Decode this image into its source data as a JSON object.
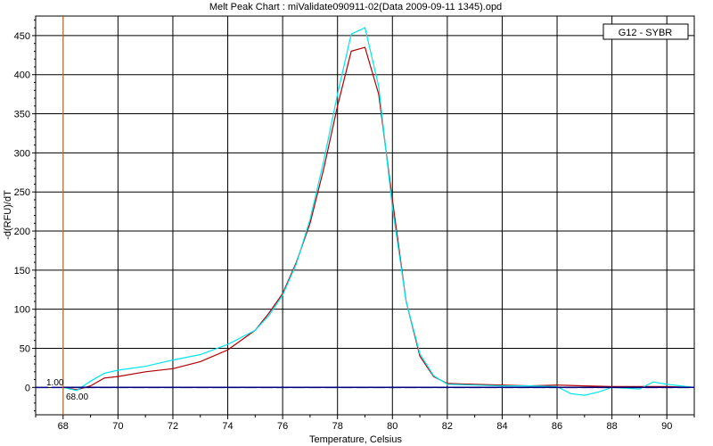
{
  "chart_data": {
    "type": "line",
    "title": "Melt Peak Chart : miValidate090911-02(Data 2009-09-11 1345).opd",
    "xlabel": "Temperature, Celsius",
    "ylabel": "-d(RFU)/dT",
    "xlim": [
      67,
      91
    ],
    "ylim": [
      -35,
      475
    ],
    "x_ticks": [
      68,
      70,
      72,
      74,
      76,
      78,
      80,
      82,
      84,
      86,
      88,
      90
    ],
    "y_ticks": [
      0,
      50,
      100,
      150,
      200,
      250,
      300,
      350,
      400,
      450
    ],
    "grid": true,
    "legend": {
      "position": "top-right",
      "entries": [
        "G12 - SYBR"
      ]
    },
    "marker": {
      "x": 68.0,
      "x_label": "68.00",
      "y_label": "1.00"
    },
    "series": [
      {
        "color": "#b00000",
        "x": [
          68.0,
          68.5,
          69.0,
          69.5,
          70.0,
          71.0,
          72.0,
          73.0,
          74.0,
          75.0,
          75.5,
          76.0,
          76.5,
          77.0,
          77.5,
          78.0,
          78.5,
          79.0,
          79.5,
          80.0,
          80.5,
          81.0,
          81.5,
          82.0,
          83.0,
          84.0,
          85.0,
          86.0,
          87.0,
          88.0,
          89.0,
          90.0,
          91.0
        ],
        "y": [
          0,
          -3,
          2,
          12,
          14,
          20,
          24,
          33,
          48,
          73,
          95,
          120,
          160,
          210,
          280,
          360,
          430,
          435,
          375,
          240,
          110,
          40,
          14,
          5,
          4,
          3,
          2,
          3,
          2,
          1,
          1,
          1,
          0
        ]
      },
      {
        "color": "#00e5ee",
        "x": [
          68.0,
          68.5,
          69.0,
          69.5,
          70.0,
          71.0,
          72.0,
          73.0,
          74.0,
          75.0,
          75.5,
          76.0,
          76.5,
          77.0,
          77.5,
          78.0,
          78.5,
          79.0,
          79.5,
          80.0,
          80.5,
          81.0,
          81.5,
          82.0,
          83.0,
          84.0,
          85.0,
          86.0,
          86.5,
          87.0,
          87.5,
          88.0,
          89.0,
          89.5,
          90.0,
          91.0
        ],
        "y": [
          0,
          -4,
          8,
          18,
          22,
          27,
          35,
          42,
          55,
          73,
          92,
          118,
          158,
          215,
          290,
          375,
          452,
          460,
          385,
          230,
          110,
          43,
          15,
          4,
          3,
          2,
          2,
          1,
          -8,
          -10,
          -6,
          0,
          -2,
          7,
          4,
          0
        ]
      },
      {
        "color": "#000080",
        "x": [
          68.0,
          70.0,
          72.0,
          74.0,
          76.0,
          78.0,
          80.0,
          82.0,
          84.0,
          86.0,
          88.0,
          90.0,
          91.0
        ],
        "y": [
          0,
          0,
          0,
          0,
          0,
          0,
          0,
          0,
          0,
          0,
          0,
          0,
          0
        ]
      }
    ]
  }
}
